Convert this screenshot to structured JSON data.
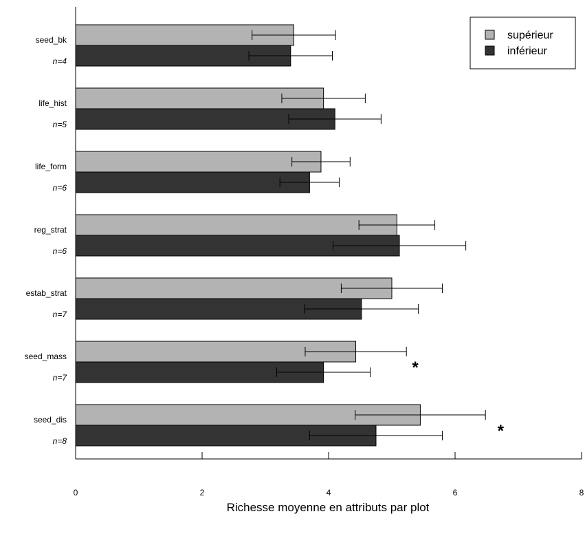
{
  "chart_data": {
    "type": "bar",
    "orientation": "horizontal",
    "title": "",
    "xlabel": "Richesse moyenne en attributs par plot",
    "ylabel": "",
    "xlim": [
      0,
      8
    ],
    "xticks": [
      "0",
      "2",
      "4",
      "6",
      "8"
    ],
    "grid": false,
    "legend_position": "top-right",
    "categories": [
      {
        "label": "seed_bk",
        "n": "n=4"
      },
      {
        "label": "life_hist",
        "n": "n=5"
      },
      {
        "label": "life_form",
        "n": "n=6"
      },
      {
        "label": "reg_strat",
        "n": "n=6"
      },
      {
        "label": "estab_strat",
        "n": "n=7"
      },
      {
        "label": "seed_mass",
        "n": "n=7"
      },
      {
        "label": "seed_dis",
        "n": "n=8"
      }
    ],
    "series": [
      {
        "name": "supérieur",
        "color": "#b3b3b3",
        "values": [
          3.45,
          3.92,
          3.88,
          5.08,
          5.0,
          4.43,
          5.45
        ],
        "errors": [
          0.66,
          0.66,
          0.46,
          0.6,
          0.8,
          0.8,
          1.03
        ]
      },
      {
        "name": "inférieur",
        "color": "#333333",
        "values": [
          3.4,
          4.1,
          3.7,
          5.12,
          4.52,
          3.92,
          4.75
        ],
        "errors": [
          0.66,
          0.73,
          0.47,
          1.05,
          0.9,
          0.74,
          1.05
        ]
      }
    ],
    "annotations": [
      {
        "text": "*",
        "category": "seed_mass",
        "x": 5.37
      },
      {
        "text": "*",
        "category": "seed_dis",
        "x": 6.72
      }
    ]
  }
}
